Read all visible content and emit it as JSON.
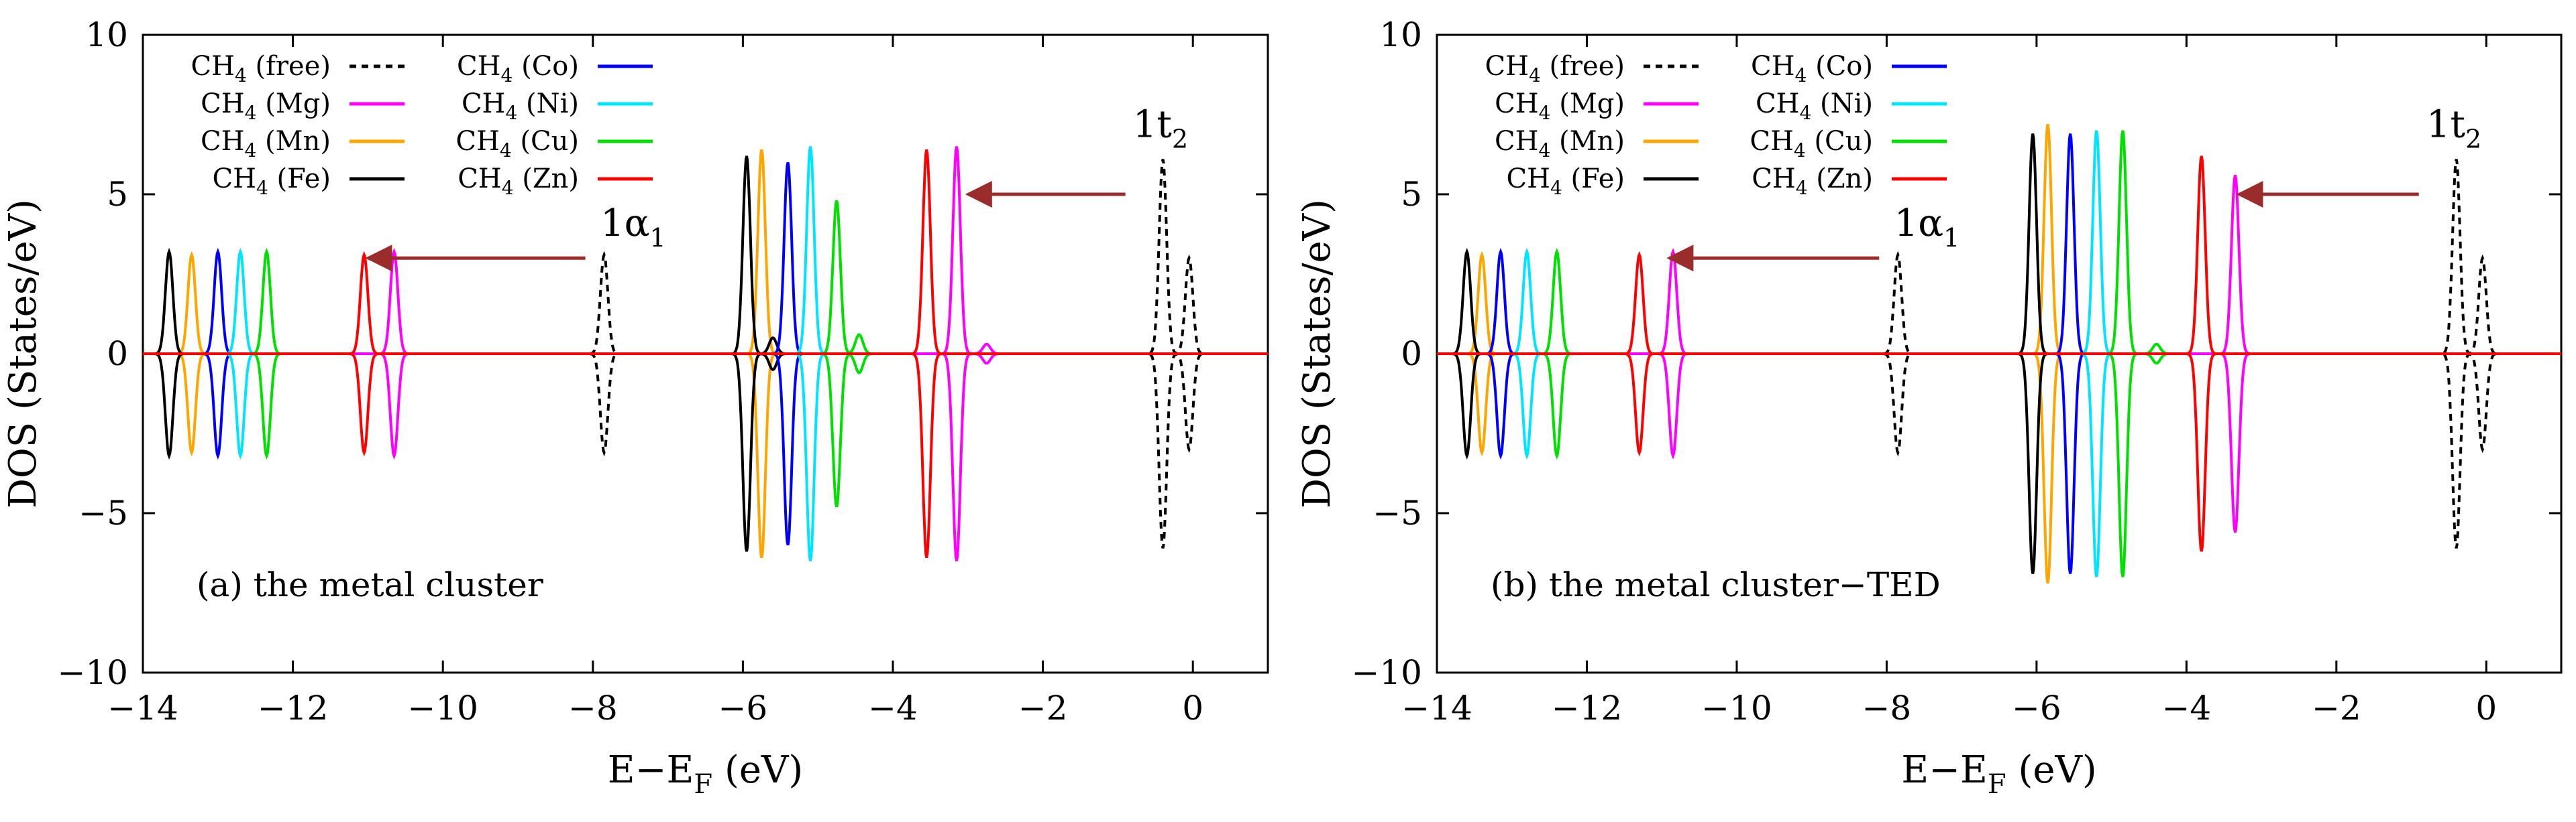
{
  "chart_data": [
    {
      "type": "line",
      "panel_label": "(a) the metal cluster",
      "xlabel": "E−E",
      "xlabel_sub": "F",
      "xlabel_unit": " (eV)",
      "ylabel": "DOS (States/eV)",
      "xlim": [
        -14,
        1
      ],
      "ylim": [
        -10,
        10
      ],
      "xticks": [
        -14,
        -12,
        -10,
        -8,
        -6,
        -4,
        -2,
        0
      ],
      "yticks": [
        -10,
        -5,
        0,
        5,
        10
      ],
      "legend_position": "top-left",
      "annotations": [
        {
          "text": "1α",
          "sub": "1",
          "data_x": -7.9,
          "data_y": 3.7,
          "arrow_from": [
            -8.1,
            3.0
          ],
          "arrow_to": [
            -11.0,
            3.0
          ]
        },
        {
          "text": "1t",
          "sub": "2",
          "data_x": -0.8,
          "data_y": 6.8,
          "arrow_from": [
            -0.9,
            5.0
          ],
          "arrow_to": [
            -3.0,
            5.0
          ]
        }
      ],
      "series": [
        {
          "name": "CH4 (free)",
          "color": "#000000",
          "dashed": true,
          "peaks": [
            {
              "x": -7.85,
              "h": 3.1
            },
            {
              "x": -0.4,
              "h": 6.1
            },
            {
              "x": -0.05,
              "h": 3.0
            }
          ]
        },
        {
          "name": "CH4 (Mg)",
          "color": "#ff00ff",
          "dashed": false,
          "peaks": [
            {
              "x": -10.65,
              "h": 3.2
            },
            {
              "x": -3.15,
              "h": 6.5
            },
            {
              "x": -2.75,
              "h": 0.3
            }
          ]
        },
        {
          "name": "CH4 (Mn)",
          "color": "#ffa500",
          "dashed": false,
          "peaks": [
            {
              "x": -13.35,
              "h": 3.1
            },
            {
              "x": -5.75,
              "h": 6.4
            }
          ]
        },
        {
          "name": "CH4 (Fe)",
          "color": "#000000",
          "dashed": false,
          "peaks": [
            {
              "x": -13.65,
              "h": 3.2
            },
            {
              "x": -5.95,
              "h": 6.2
            },
            {
              "x": -5.6,
              "h": 0.5
            }
          ]
        },
        {
          "name": "CH4 (Co)",
          "color": "#0000ff",
          "dashed": false,
          "peaks": [
            {
              "x": -13.0,
              "h": 3.2
            },
            {
              "x": -5.4,
              "h": 6.0
            }
          ]
        },
        {
          "name": "CH4 (Ni)",
          "color": "#00e5ff",
          "dashed": false,
          "peaks": [
            {
              "x": -12.7,
              "h": 3.2
            },
            {
              "x": -5.1,
              "h": 6.5
            }
          ]
        },
        {
          "name": "CH4 (Cu)",
          "color": "#00e000",
          "dashed": false,
          "peaks": [
            {
              "x": -12.35,
              "h": 3.2
            },
            {
              "x": -4.75,
              "h": 4.8
            },
            {
              "x": -4.45,
              "h": 0.6
            }
          ]
        },
        {
          "name": "CH4 (Zn)",
          "color": "#ff0000",
          "dashed": false,
          "peaks": [
            {
              "x": -11.05,
              "h": 3.1
            },
            {
              "x": -3.55,
              "h": 6.4
            }
          ]
        }
      ]
    },
    {
      "type": "line",
      "panel_label": "(b) the metal cluster−TED",
      "xlabel": "E−E",
      "xlabel_sub": "F",
      "xlabel_unit": " (eV)",
      "ylabel": "DOS (States/eV)",
      "xlim": [
        -14,
        1
      ],
      "ylim": [
        -10,
        10
      ],
      "xticks": [
        -14,
        -12,
        -10,
        -8,
        -6,
        -4,
        -2,
        0
      ],
      "yticks": [
        -10,
        -5,
        0,
        5,
        10
      ],
      "legend_position": "top-left",
      "annotations": [
        {
          "text": "1α",
          "sub": "1",
          "data_x": -7.9,
          "data_y": 3.7,
          "arrow_from": [
            -8.1,
            3.0
          ],
          "arrow_to": [
            -10.9,
            3.0
          ]
        },
        {
          "text": "1t",
          "sub": "2",
          "data_x": -0.8,
          "data_y": 6.8,
          "arrow_from": [
            -0.9,
            5.0
          ],
          "arrow_to": [
            -3.3,
            5.0
          ]
        }
      ],
      "series": [
        {
          "name": "CH4 (free)",
          "color": "#000000",
          "dashed": true,
          "peaks": [
            {
              "x": -7.85,
              "h": 3.1
            },
            {
              "x": -0.4,
              "h": 6.1
            },
            {
              "x": -0.05,
              "h": 3.0
            }
          ]
        },
        {
          "name": "CH4 (Mg)",
          "color": "#ff00ff",
          "dashed": false,
          "peaks": [
            {
              "x": -10.85,
              "h": 3.2
            },
            {
              "x": -3.35,
              "h": 5.6
            }
          ]
        },
        {
          "name": "CH4 (Mn)",
          "color": "#ffa500",
          "dashed": false,
          "peaks": [
            {
              "x": -13.4,
              "h": 3.1
            },
            {
              "x": -5.85,
              "h": 7.2
            }
          ]
        },
        {
          "name": "CH4 (Fe)",
          "color": "#000000",
          "dashed": false,
          "peaks": [
            {
              "x": -13.6,
              "h": 3.2
            },
            {
              "x": -6.05,
              "h": 6.9
            }
          ]
        },
        {
          "name": "CH4 (Co)",
          "color": "#0000ff",
          "dashed": false,
          "peaks": [
            {
              "x": -13.15,
              "h": 3.2
            },
            {
              "x": -5.55,
              "h": 6.9
            }
          ]
        },
        {
          "name": "CH4 (Ni)",
          "color": "#00e5ff",
          "dashed": false,
          "peaks": [
            {
              "x": -12.8,
              "h": 3.2
            },
            {
              "x": -5.2,
              "h": 7.0
            }
          ]
        },
        {
          "name": "CH4 (Cu)",
          "color": "#00e000",
          "dashed": false,
          "peaks": [
            {
              "x": -12.4,
              "h": 3.2
            },
            {
              "x": -4.85,
              "h": 7.0
            },
            {
              "x": -4.4,
              "h": 0.3
            }
          ]
        },
        {
          "name": "CH4 (Zn)",
          "color": "#ff0000",
          "dashed": false,
          "peaks": [
            {
              "x": -11.3,
              "h": 3.1
            },
            {
              "x": -3.8,
              "h": 6.2
            }
          ]
        }
      ]
    }
  ]
}
